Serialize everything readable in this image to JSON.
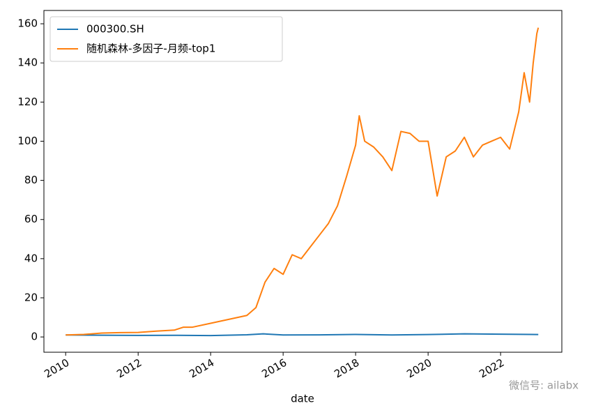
{
  "chart_data": {
    "type": "line",
    "xlabel": "date",
    "watermark": "微信号: ailabx",
    "xlim": [
      2009.4,
      2023.69
    ],
    "xticks": [
      2010,
      2012,
      2014,
      2016,
      2018,
      2020,
      2022
    ],
    "ylim": [
      -7.8,
      166.8
    ],
    "yticks": [
      0,
      20,
      40,
      60,
      80,
      100,
      120,
      140,
      160
    ],
    "legend": "upper left",
    "series": [
      {
        "name": "000300.SH",
        "color": "#1f77b4",
        "x": [
          2010,
          2011,
          2012,
          2013,
          2014,
          2015,
          2015.45,
          2016,
          2017,
          2018,
          2019,
          2020,
          2021,
          2022,
          2023.04
        ],
        "values": [
          1,
          0.9,
          0.8,
          0.85,
          0.7,
          1.1,
          1.6,
          1.0,
          1.05,
          1.3,
          1.0,
          1.25,
          1.6,
          1.4,
          1.25
        ]
      },
      {
        "name": "随机森林-多因子-月频-top1",
        "color": "#ff7f0e",
        "x": [
          2010,
          2010.5,
          2011,
          2011.5,
          2012,
          2012.5,
          2013,
          2013.25,
          2013.5,
          2014,
          2014.5,
          2015,
          2015.25,
          2015.5,
          2015.75,
          2016,
          2016.25,
          2016.5,
          2016.75,
          2017,
          2017.25,
          2017.5,
          2017.75,
          2018,
          2018.1,
          2018.25,
          2018.5,
          2018.75,
          2019,
          2019.25,
          2019.5,
          2019.75,
          2020,
          2020.25,
          2020.5,
          2020.75,
          2021,
          2021.25,
          2021.5,
          2021.75,
          2022,
          2022.25,
          2022.5,
          2022.65,
          2022.8,
          2022.9,
          2023,
          2023.04
        ],
        "values": [
          1,
          1.3,
          2,
          2.2,
          2.3,
          3,
          3.5,
          5,
          5,
          7,
          9,
          11,
          15,
          28,
          35,
          32,
          42,
          40,
          46,
          52,
          58,
          67,
          82,
          98,
          113,
          100,
          97,
          92,
          85,
          105,
          104,
          100,
          100,
          72,
          92,
          95,
          102,
          92,
          98,
          100,
          102,
          96,
          115,
          135,
          120,
          140,
          155,
          158
        ]
      }
    ]
  }
}
